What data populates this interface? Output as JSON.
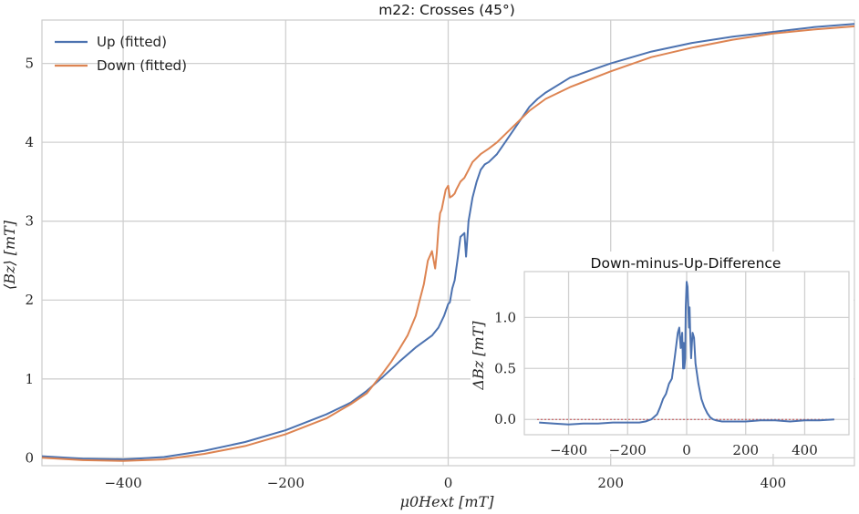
{
  "chart_data": [
    {
      "type": "line",
      "title": "m22: Crosses (45°)",
      "xlabel": "μ0Hext [mT]",
      "ylabel": "⟨Bz⟩ [mT]",
      "xlim": [
        -500,
        500
      ],
      "ylim": [
        -0.1,
        5.55
      ],
      "xticks": [
        -400,
        -200,
        0,
        200,
        400
      ],
      "xtick_labels": [
        "−400",
        "−200",
        "0",
        "200",
        "400"
      ],
      "yticks": [
        0,
        1,
        2,
        3,
        4,
        5
      ],
      "ytick_labels": [
        "0",
        "1",
        "2",
        "3",
        "4",
        "5"
      ],
      "grid": true,
      "legend_position": "top-left",
      "series": [
        {
          "name": "Up (fitted)",
          "color": "#4c72b0",
          "x": [
            -500,
            -450,
            -400,
            -350,
            -300,
            -250,
            -200,
            -150,
            -120,
            -100,
            -80,
            -60,
            -40,
            -20,
            -12,
            -5,
            0,
            2,
            5,
            8,
            12,
            15,
            20,
            22,
            25,
            30,
            35,
            40,
            45,
            50,
            60,
            70,
            80,
            90,
            100,
            110,
            120,
            150,
            200,
            250,
            300,
            350,
            400,
            450,
            500
          ],
          "y": [
            0.02,
            -0.01,
            -0.02,
            0.01,
            0.09,
            0.2,
            0.35,
            0.55,
            0.7,
            0.85,
            1.03,
            1.22,
            1.4,
            1.55,
            1.65,
            1.8,
            1.95,
            1.97,
            2.15,
            2.25,
            2.55,
            2.8,
            2.85,
            2.55,
            3.0,
            3.3,
            3.5,
            3.65,
            3.72,
            3.75,
            3.85,
            4.0,
            4.15,
            4.3,
            4.45,
            4.55,
            4.63,
            4.82,
            5.0,
            5.15,
            5.26,
            5.34,
            5.4,
            5.46,
            5.5
          ]
        },
        {
          "name": "Down (fitted)",
          "color": "#dd8452",
          "x": [
            -500,
            -450,
            -400,
            -350,
            -300,
            -250,
            -200,
            -150,
            -120,
            -100,
            -90,
            -80,
            -70,
            -60,
            -50,
            -40,
            -35,
            -30,
            -25,
            -20,
            -16,
            -14,
            -12,
            -10,
            -8,
            -5,
            -3,
            0,
            2,
            5,
            8,
            10,
            15,
            20,
            25,
            30,
            40,
            50,
            60,
            80,
            100,
            120,
            150,
            200,
            250,
            300,
            350,
            400,
            450,
            500
          ],
          "y": [
            0.0,
            -0.03,
            -0.04,
            -0.02,
            0.05,
            0.15,
            0.3,
            0.5,
            0.68,
            0.82,
            0.95,
            1.08,
            1.22,
            1.38,
            1.55,
            1.8,
            2.0,
            2.2,
            2.5,
            2.62,
            2.4,
            2.6,
            2.9,
            3.1,
            3.15,
            3.3,
            3.4,
            3.45,
            3.3,
            3.32,
            3.35,
            3.4,
            3.5,
            3.55,
            3.65,
            3.75,
            3.85,
            3.92,
            4.0,
            4.2,
            4.4,
            4.55,
            4.7,
            4.9,
            5.08,
            5.2,
            5.3,
            5.38,
            5.43,
            5.47
          ]
        }
      ]
    },
    {
      "type": "line",
      "title": "Down-minus-Up-Difference",
      "xlabel": "",
      "ylabel": "ΔBz [mT]",
      "xlim": [
        -550,
        550
      ],
      "ylim": [
        -0.15,
        1.45
      ],
      "xticks": [
        -400,
        -200,
        0,
        200,
        400
      ],
      "xtick_labels": [
        "−400",
        "−200",
        "0",
        "200",
        "400"
      ],
      "yticks": [
        0.0,
        0.5,
        1.0
      ],
      "ytick_labels": [
        "0.0",
        "0.5",
        "1.0"
      ],
      "grid": true,
      "reference_line": {
        "y": 0,
        "color": "#c44e52"
      },
      "series": [
        {
          "name": "",
          "color": "#4c72b0",
          "x": [
            -500,
            -450,
            -400,
            -350,
            -300,
            -250,
            -200,
            -160,
            -140,
            -120,
            -100,
            -90,
            -80,
            -70,
            -60,
            -50,
            -40,
            -30,
            -25,
            -20,
            -15,
            -12,
            -10,
            -8,
            -5,
            -3,
            0,
            3,
            5,
            8,
            10,
            12,
            15,
            18,
            20,
            25,
            30,
            35,
            40,
            50,
            60,
            70,
            80,
            90,
            100,
            120,
            150,
            200,
            250,
            300,
            350,
            400,
            450,
            500
          ],
          "y": [
            -0.03,
            -0.04,
            -0.05,
            -0.04,
            -0.04,
            -0.03,
            -0.03,
            -0.03,
            -0.02,
            0.0,
            0.05,
            0.12,
            0.2,
            0.25,
            0.35,
            0.4,
            0.62,
            0.85,
            0.9,
            0.7,
            0.85,
            0.5,
            0.75,
            0.5,
            0.6,
            1.1,
            1.35,
            1.3,
            1.15,
            0.9,
            1.1,
            0.85,
            0.6,
            0.75,
            0.85,
            0.8,
            0.55,
            0.45,
            0.35,
            0.2,
            0.12,
            0.06,
            0.02,
            0.0,
            -0.01,
            -0.02,
            -0.02,
            -0.02,
            -0.01,
            -0.01,
            -0.02,
            -0.01,
            -0.01,
            0.0
          ]
        }
      ]
    }
  ]
}
